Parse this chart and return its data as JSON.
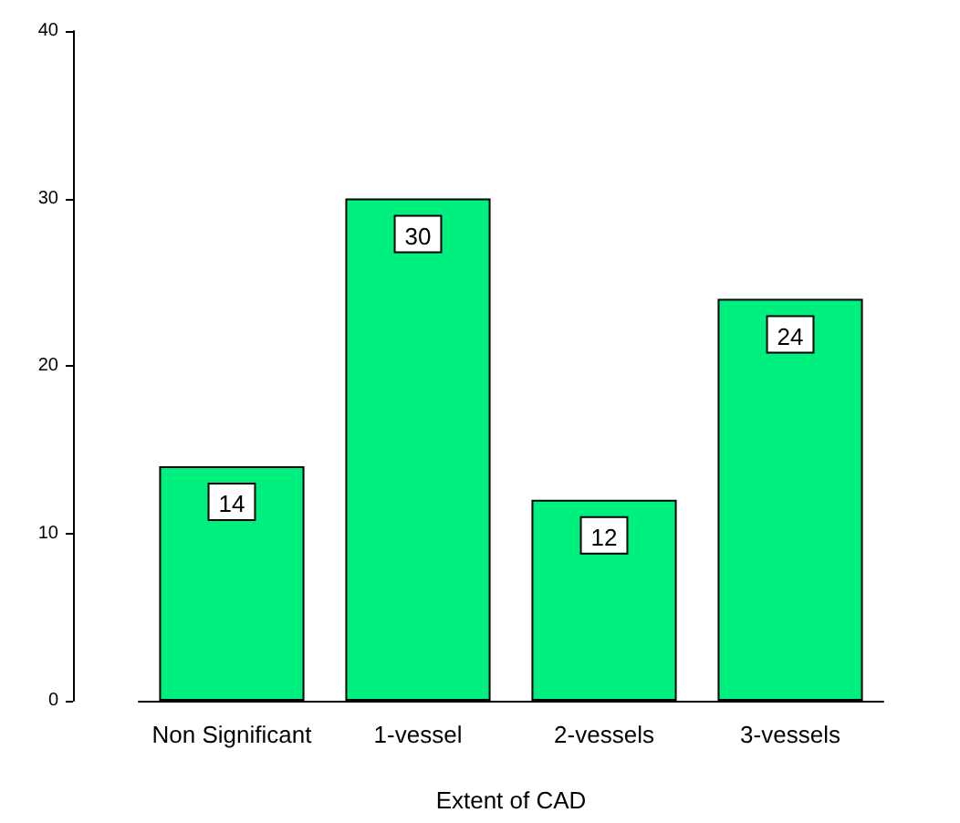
{
  "chart_data": {
    "type": "bar",
    "xlabel": "Extent of CAD",
    "categories": [
      "Non Significant",
      "1-vessel",
      "2-vessels",
      "3-vessels"
    ],
    "values": [
      14,
      30,
      12,
      24
    ],
    "color": "#00f080",
    "ylim": [
      0,
      40
    ],
    "yticks": [
      0,
      10,
      20,
      30,
      40
    ],
    "grid": false,
    "data_labels": true
  }
}
